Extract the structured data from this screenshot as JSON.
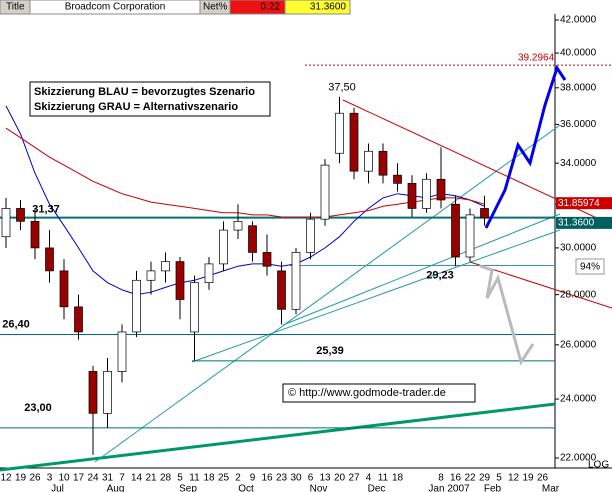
{
  "header": {
    "title_label": "Title",
    "name": "Broadcom Corporation",
    "net_label": "Net%",
    "net": "0.22",
    "last": "31.3600"
  },
  "notes": {
    "line1": "Skizzierung BLAU = bevorzugtes Szenario",
    "line2": "Skizzierung GRAU = Alternativszenario",
    "copyright": "© http://www.godmode-trader.de",
    "scale": "LOG"
  },
  "chart_data": {
    "type": "candlestick",
    "log_scale": true,
    "categories": [
      "12",
      "19",
      "26",
      "3",
      "10",
      "17",
      "24",
      "31",
      "7",
      "14",
      "21",
      "28",
      "5",
      "11",
      "18",
      "25",
      "2",
      "9",
      "16",
      "23",
      "30",
      "6",
      "13",
      "20",
      "27",
      "4",
      "11",
      "18",
      null,
      null,
      "8",
      "16",
      "22",
      "29",
      "5",
      "12",
      "19",
      "26"
    ],
    "month_labels": [
      null,
      null,
      null,
      "Jul",
      null,
      null,
      null,
      "Aug",
      null,
      null,
      null,
      null,
      "Sep",
      null,
      null,
      null,
      "Oct",
      null,
      null,
      null,
      null,
      "Nov",
      null,
      null,
      null,
      "Dec",
      null,
      null,
      null,
      null,
      "Jan 2007",
      null,
      null,
      "Feb",
      null,
      null,
      null,
      "Mar"
    ],
    "open": [
      30.5,
      31.8,
      31.2,
      30.0,
      29.0,
      27.5,
      25.0,
      23.5,
      25.0,
      26.5,
      28.6,
      29.0,
      29.4,
      26.5,
      28.5,
      29.3,
      30.8,
      31.0,
      29.8,
      29.0,
      27.4,
      29.8,
      31.3,
      34.5,
      36.6,
      33.6,
      34.6,
      33.4,
      33.0,
      31.8,
      33.2,
      32.0,
      29.6,
      31.8,
      null,
      null,
      null,
      null
    ],
    "high": [
      32.3,
      32.2,
      31.8,
      30.8,
      29.5,
      28.0,
      25.2,
      25.5,
      26.8,
      29.0,
      29.4,
      29.8,
      29.6,
      28.8,
      29.6,
      31.2,
      32.0,
      31.2,
      30.6,
      29.4,
      30.0,
      31.6,
      34.2,
      37.5,
      36.9,
      35.0,
      35.0,
      34.0,
      33.4,
      33.5,
      34.8,
      32.4,
      31.8,
      32.4,
      null,
      null,
      null,
      null
    ],
    "low": [
      30.0,
      30.8,
      29.5,
      28.5,
      27.0,
      26.2,
      22.1,
      23.0,
      24.6,
      26.3,
      28.0,
      28.5,
      27.0,
      25.4,
      28.2,
      29.0,
      30.4,
      29.4,
      28.8,
      26.8,
      27.2,
      29.5,
      31.0,
      34.0,
      33.2,
      33.0,
      33.0,
      32.6,
      31.4,
      31.6,
      31.8,
      29.2,
      29.4,
      31.0,
      null,
      null,
      null,
      null
    ],
    "close": [
      31.8,
      31.2,
      30.0,
      29.0,
      27.5,
      26.5,
      23.5,
      25.0,
      26.5,
      28.6,
      29.0,
      29.4,
      27.8,
      28.5,
      29.3,
      30.8,
      31.2,
      29.8,
      29.2,
      27.4,
      29.8,
      31.3,
      33.9,
      36.6,
      33.6,
      34.6,
      33.4,
      33.0,
      31.8,
      33.2,
      32.2,
      29.6,
      31.5,
      31.36,
      null,
      null,
      null,
      null
    ],
    "up_color": "#ffffff",
    "down_color": "#990000",
    "series": [
      {
        "color": "#0000cc",
        "values": [
          37,
          35.5,
          33.5,
          32,
          31,
          30,
          29,
          28.5,
          28.2,
          28,
          28.1,
          28.3,
          28.5,
          28.6,
          28.8,
          29,
          29.2,
          29.3,
          29.3,
          29.2,
          29.3,
          29.6,
          30,
          30.5,
          31.2,
          31.8,
          32.3,
          32.5,
          32.4,
          32.3,
          32.5,
          32.4,
          32.2,
          31.9,
          null,
          null,
          null,
          null
        ]
      },
      {
        "color": "#cc0000",
        "values": [
          35.8,
          35.3,
          34.8,
          34.3,
          33.9,
          33.5,
          33.1,
          32.8,
          32.5,
          32.3,
          32.1,
          32,
          31.9,
          31.8,
          31.7,
          31.6,
          31.6,
          31.5,
          31.5,
          31.4,
          31.4,
          31.4,
          31.4,
          31.5,
          31.6,
          31.7,
          31.9,
          32,
          32.1,
          32.2,
          32.3,
          32.3,
          32.2,
          32,
          null,
          null,
          null,
          null
        ]
      }
    ],
    "levels": [
      {
        "value": 31.37,
        "label": "31,37",
        "color": "#007070"
      },
      {
        "value": 29.23,
        "label": "29,23",
        "color": "#339999"
      },
      {
        "value": 26.4,
        "label": "26,40",
        "color": "#007070"
      },
      {
        "value": 25.39,
        "label": "25,39",
        "color": "#007070"
      },
      {
        "value": 23.0,
        "label": "23,00",
        "color": "#007070"
      }
    ],
    "peak": {
      "value": 37.5,
      "label": "37,50"
    },
    "target": {
      "value": 39.2964,
      "label": "39.2964",
      "color": "#cc0000"
    },
    "price_tags": [
      {
        "value": 31.85974,
        "label": "31.85974",
        "color": "#cc0000"
      },
      {
        "value": 31.36,
        "label": "31.3600",
        "color": "#006060"
      }
    ],
    "percent_tag": "94%",
    "ylim": [
      22,
      42
    ],
    "yticks": [
      {
        "value": 22,
        "label": "22.0000"
      },
      {
        "value": 24,
        "label": "24.0000"
      },
      {
        "value": 26,
        "label": "26.0000"
      },
      {
        "value": 28,
        "label": "28.0000"
      },
      {
        "value": 30,
        "label": "30.0000"
      },
      {
        "value": 32,
        "label": "32.0000"
      },
      {
        "value": 34,
        "label": "34.0000"
      },
      {
        "value": 36,
        "label": "36.0000"
      },
      {
        "value": 38,
        "label": "38.0000"
      },
      {
        "value": 40,
        "label": "40.0000"
      },
      {
        "value": 42,
        "label": "42.0000"
      }
    ]
  }
}
